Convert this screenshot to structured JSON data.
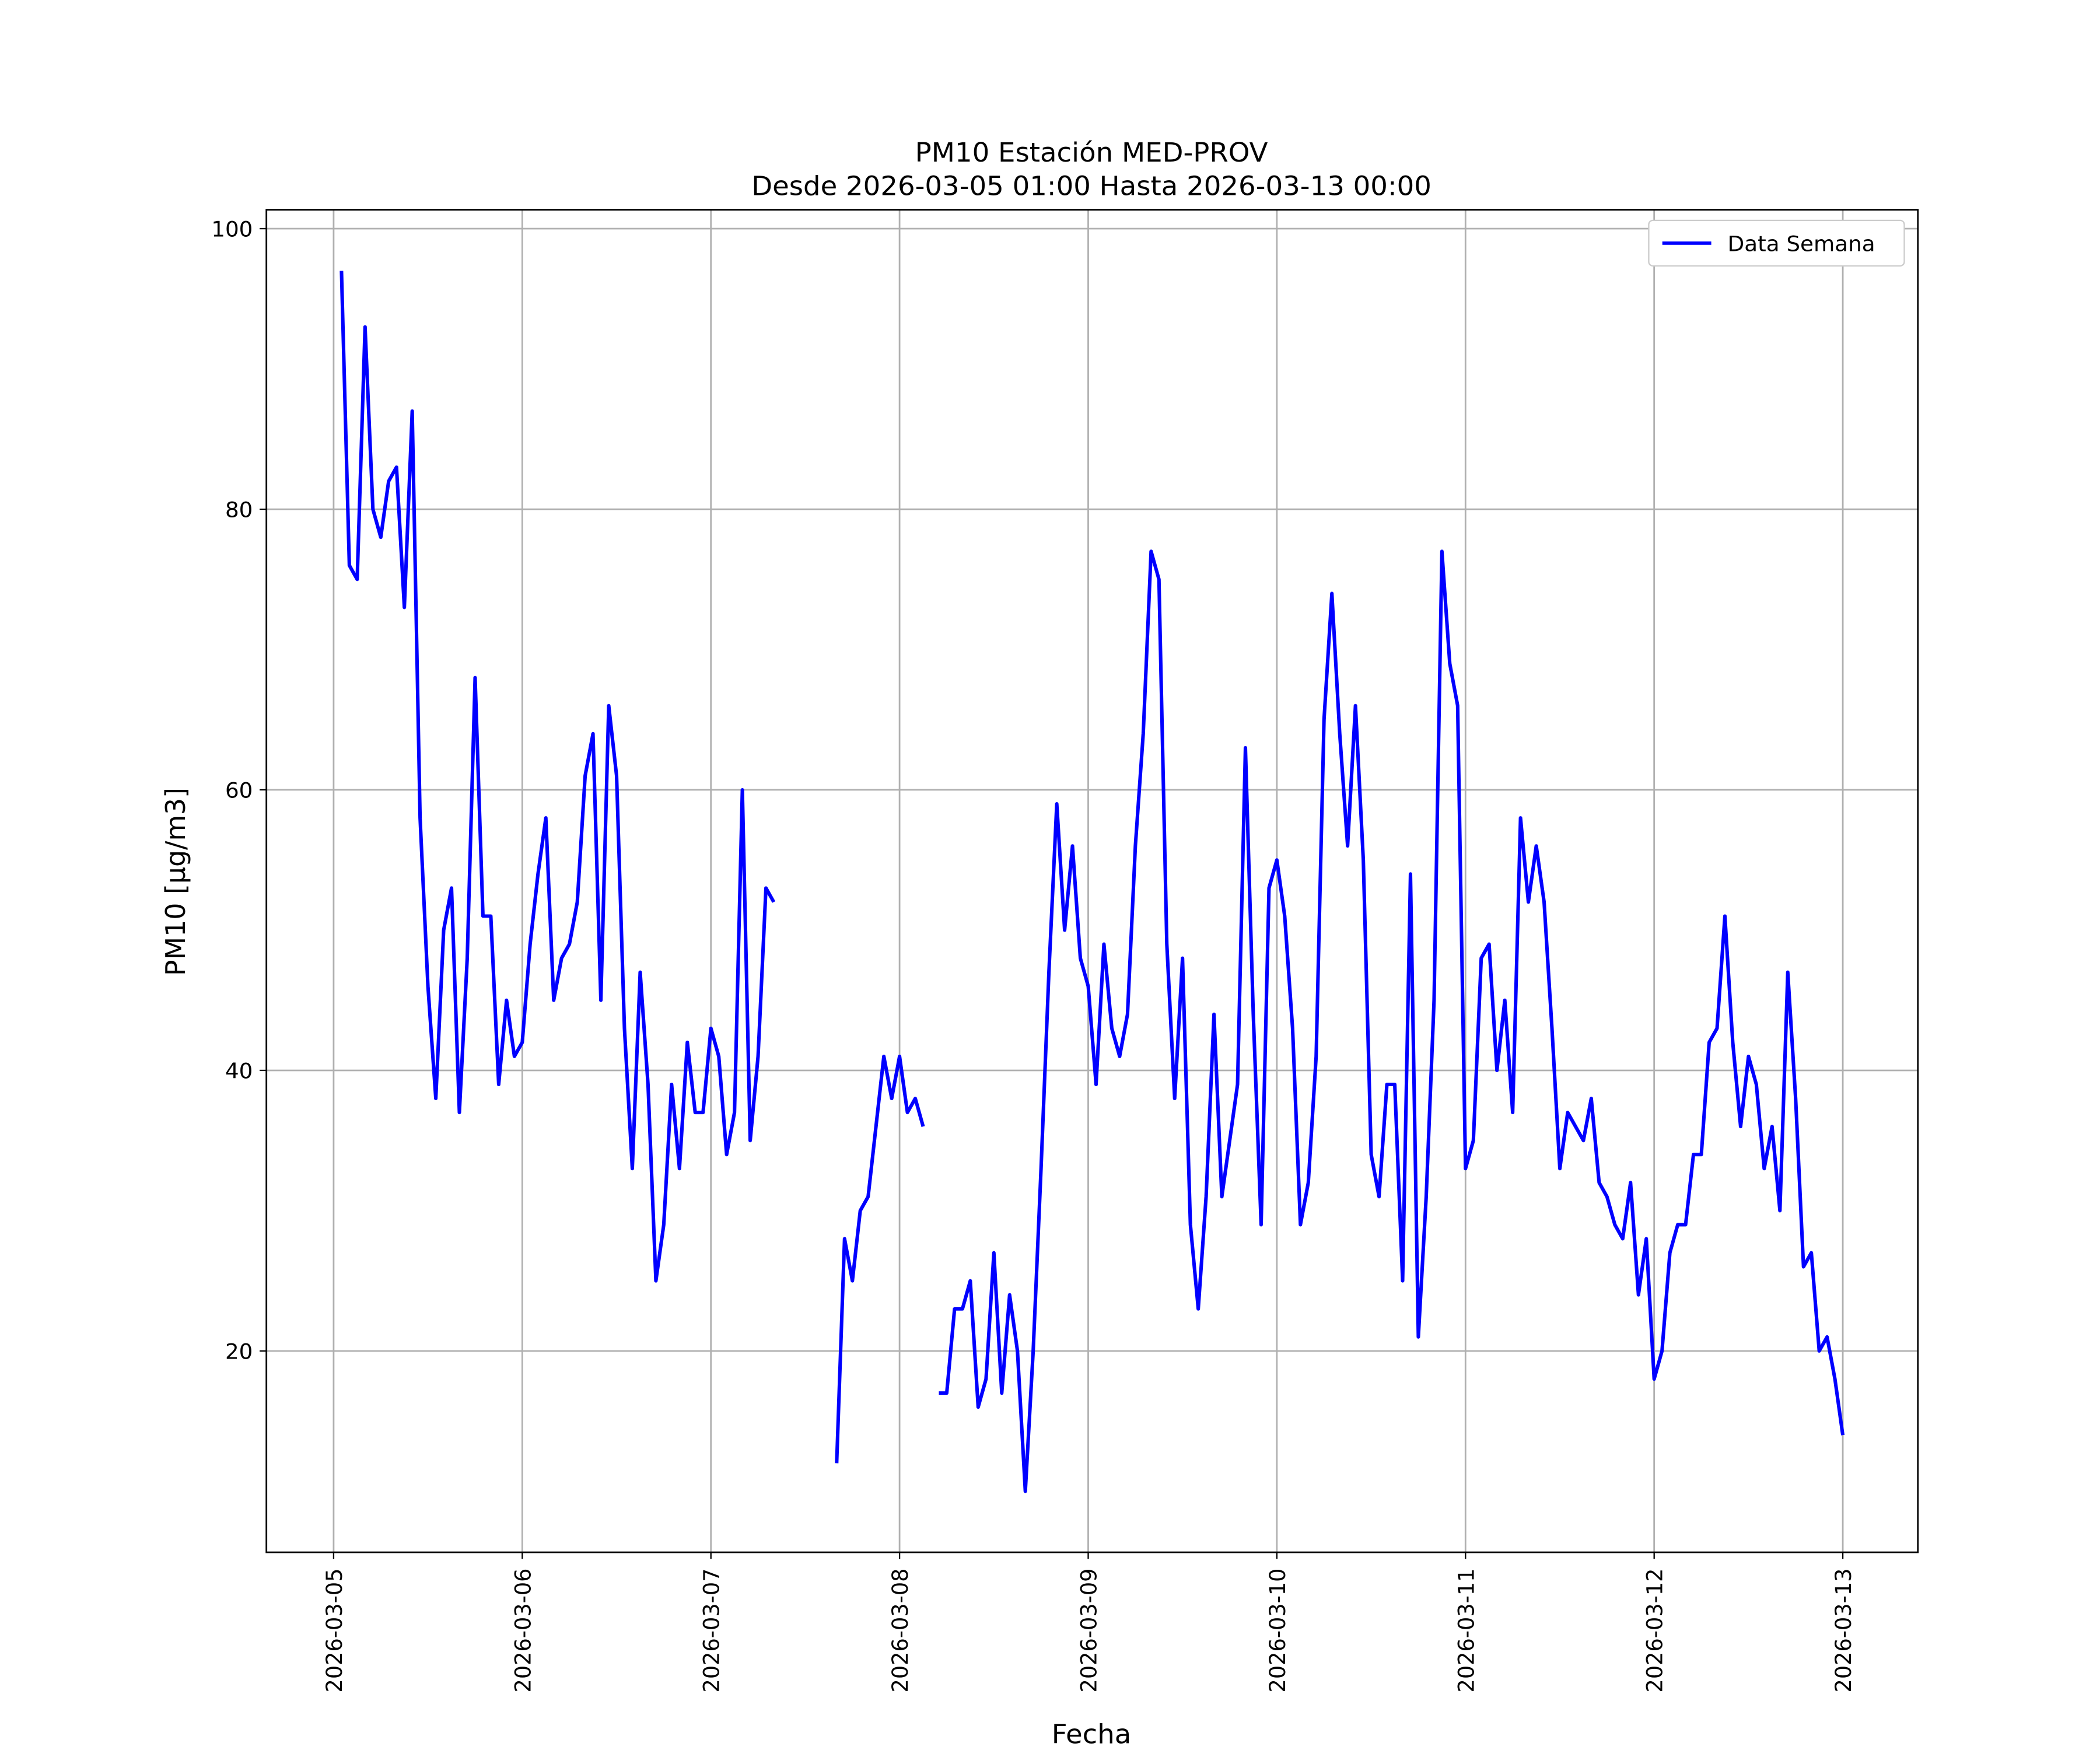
{
  "chart_data": {
    "type": "line",
    "title": "PM10 Estación MED-PROV",
    "subtitle": "Desde 2026-03-05 01:00 Hasta 2026-03-13 00:00",
    "x_label": "Fecha",
    "y_label": "PM10 [μg/m3]",
    "x": [
      "2026-03-05 01:00",
      "2026-03-05 02:00",
      "2026-03-05 03:00",
      "2026-03-05 04:00",
      "2026-03-05 05:00",
      "2026-03-05 06:00",
      "2026-03-05 07:00",
      "2026-03-05 08:00",
      "2026-03-05 09:00",
      "2026-03-05 10:00",
      "2026-03-05 11:00",
      "2026-03-05 12:00",
      "2026-03-05 13:00",
      "2026-03-05 14:00",
      "2026-03-05 15:00",
      "2026-03-05 16:00",
      "2026-03-05 17:00",
      "2026-03-05 18:00",
      "2026-03-05 19:00",
      "2026-03-05 20:00",
      "2026-03-05 21:00",
      "2026-03-05 22:00",
      "2026-03-05 23:00",
      "2026-03-06 00:00",
      "2026-03-06 01:00",
      "2026-03-06 02:00",
      "2026-03-06 03:00",
      "2026-03-06 04:00",
      "2026-03-06 05:00",
      "2026-03-06 06:00",
      "2026-03-06 07:00",
      "2026-03-06 08:00",
      "2026-03-06 09:00",
      "2026-03-06 10:00",
      "2026-03-06 11:00",
      "2026-03-06 12:00",
      "2026-03-06 13:00",
      "2026-03-06 14:00",
      "2026-03-06 15:00",
      "2026-03-06 16:00",
      "2026-03-06 17:00",
      "2026-03-06 18:00",
      "2026-03-06 19:00",
      "2026-03-06 20:00",
      "2026-03-06 21:00",
      "2026-03-06 22:00",
      "2026-03-06 23:00",
      "2026-03-07 00:00",
      "2026-03-07 01:00",
      "2026-03-07 02:00",
      "2026-03-07 03:00",
      "2026-03-07 04:00",
      "2026-03-07 05:00",
      "2026-03-07 06:00",
      "2026-03-07 07:00",
      "2026-03-07 08:00",
      "2026-03-07 09:00",
      "2026-03-07 10:00",
      "2026-03-07 11:00",
      "2026-03-07 12:00",
      "2026-03-07 13:00",
      "2026-03-07 14:00",
      "2026-03-07 15:00",
      "2026-03-07 16:00",
      "2026-03-07 17:00",
      "2026-03-07 18:00",
      "2026-03-07 19:00",
      "2026-03-07 20:00",
      "2026-03-07 21:00",
      "2026-03-07 22:00",
      "2026-03-07 23:00",
      "2026-03-08 00:00",
      "2026-03-08 01:00",
      "2026-03-08 02:00",
      "2026-03-08 03:00",
      "2026-03-08 04:00",
      "2026-03-08 05:00",
      "2026-03-08 06:00",
      "2026-03-08 07:00",
      "2026-03-08 08:00",
      "2026-03-08 09:00",
      "2026-03-08 10:00",
      "2026-03-08 11:00",
      "2026-03-08 12:00",
      "2026-03-08 13:00",
      "2026-03-08 14:00",
      "2026-03-08 15:00",
      "2026-03-08 16:00",
      "2026-03-08 17:00",
      "2026-03-08 18:00",
      "2026-03-08 19:00",
      "2026-03-08 20:00",
      "2026-03-08 21:00",
      "2026-03-08 22:00",
      "2026-03-08 23:00",
      "2026-03-09 00:00",
      "2026-03-09 01:00",
      "2026-03-09 02:00",
      "2026-03-09 03:00",
      "2026-03-09 04:00",
      "2026-03-09 05:00",
      "2026-03-09 06:00",
      "2026-03-09 07:00",
      "2026-03-09 08:00",
      "2026-03-09 09:00",
      "2026-03-09 10:00",
      "2026-03-09 11:00",
      "2026-03-09 12:00",
      "2026-03-09 13:00",
      "2026-03-09 14:00",
      "2026-03-09 15:00",
      "2026-03-09 16:00",
      "2026-03-09 17:00",
      "2026-03-09 18:00",
      "2026-03-09 19:00",
      "2026-03-09 20:00",
      "2026-03-09 21:00",
      "2026-03-09 22:00",
      "2026-03-09 23:00",
      "2026-03-10 00:00",
      "2026-03-10 01:00",
      "2026-03-10 02:00",
      "2026-03-10 03:00",
      "2026-03-10 04:00",
      "2026-03-10 05:00",
      "2026-03-10 06:00",
      "2026-03-10 07:00",
      "2026-03-10 08:00",
      "2026-03-10 09:00",
      "2026-03-10 10:00",
      "2026-03-10 11:00",
      "2026-03-10 12:00",
      "2026-03-10 13:00",
      "2026-03-10 14:00",
      "2026-03-10 15:00",
      "2026-03-10 16:00",
      "2026-03-10 17:00",
      "2026-03-10 18:00",
      "2026-03-10 19:00",
      "2026-03-10 20:00",
      "2026-03-10 21:00",
      "2026-03-10 22:00",
      "2026-03-10 23:00",
      "2026-03-11 00:00",
      "2026-03-11 01:00",
      "2026-03-11 02:00",
      "2026-03-11 03:00",
      "2026-03-11 04:00",
      "2026-03-11 05:00",
      "2026-03-11 06:00",
      "2026-03-11 07:00",
      "2026-03-11 08:00",
      "2026-03-11 09:00",
      "2026-03-11 10:00",
      "2026-03-11 11:00",
      "2026-03-11 12:00",
      "2026-03-11 13:00",
      "2026-03-11 14:00",
      "2026-03-11 15:00",
      "2026-03-11 16:00",
      "2026-03-11 17:00",
      "2026-03-11 18:00",
      "2026-03-11 19:00",
      "2026-03-11 20:00",
      "2026-03-11 21:00",
      "2026-03-11 22:00",
      "2026-03-11 23:00",
      "2026-03-12 00:00",
      "2026-03-12 01:00",
      "2026-03-12 02:00",
      "2026-03-12 03:00",
      "2026-03-12 04:00",
      "2026-03-12 05:00",
      "2026-03-12 06:00",
      "2026-03-12 07:00",
      "2026-03-12 08:00",
      "2026-03-12 09:00",
      "2026-03-12 10:00",
      "2026-03-12 11:00",
      "2026-03-12 12:00",
      "2026-03-12 13:00",
      "2026-03-12 14:00",
      "2026-03-12 15:00",
      "2026-03-12 16:00",
      "2026-03-12 17:00",
      "2026-03-12 18:00",
      "2026-03-12 19:00",
      "2026-03-12 20:00",
      "2026-03-12 21:00",
      "2026-03-12 22:00",
      "2026-03-12 23:00",
      "2026-03-13 00:00"
    ],
    "series": [
      {
        "name": "Data Semana",
        "color": "#0000ff",
        "values": [
          97,
          76,
          75,
          93,
          80,
          78,
          82,
          83,
          73,
          87,
          58,
          46,
          38,
          50,
          53,
          37,
          48,
          68,
          51,
          51,
          39,
          45,
          41,
          42,
          49,
          54,
          58,
          45,
          48,
          49,
          52,
          61,
          64,
          45,
          66,
          61,
          43,
          33,
          47,
          39,
          25,
          29,
          39,
          33,
          42,
          37,
          37,
          43,
          41,
          34,
          37,
          60,
          35,
          41,
          53,
          52,
          null,
          null,
          null,
          null,
          null,
          null,
          null,
          12,
          28,
          25,
          30,
          31,
          36,
          41,
          38,
          41,
          37,
          38,
          36,
          null,
          17,
          17,
          23,
          23,
          25,
          16,
          18,
          27,
          17,
          24,
          20,
          10,
          20,
          33,
          47,
          59,
          50,
          56,
          48,
          46,
          39,
          49,
          43,
          41,
          44,
          56,
          64,
          77,
          75,
          49,
          38,
          48,
          29,
          23,
          31,
          44,
          31,
          35,
          39,
          63,
          44,
          29,
          53,
          55,
          51,
          43,
          29,
          32,
          41,
          65,
          74,
          64,
          56,
          66,
          55,
          34,
          31,
          39,
          39,
          25,
          54,
          21,
          31,
          45,
          77,
          69,
          66,
          33,
          35,
          48,
          49,
          40,
          45,
          37,
          58,
          52,
          56,
          52,
          43,
          33,
          37,
          36,
          35,
          38,
          32,
          31,
          29,
          28,
          32,
          24,
          28,
          18,
          20,
          27,
          29,
          29,
          34,
          34,
          42,
          43,
          51,
          42,
          36,
          41,
          39,
          33,
          36,
          30,
          47,
          38,
          26,
          27,
          20,
          21,
          18,
          14
        ]
      }
    ],
    "xlim": [
      "2026-03-04 15:27",
      "2026-03-13 09:33"
    ],
    "xticks": [
      "2026-03-05",
      "2026-03-06",
      "2026-03-07",
      "2026-03-08",
      "2026-03-09",
      "2026-03-10",
      "2026-03-11",
      "2026-03-12",
      "2026-03-13"
    ],
    "ylim": [
      5.65,
      101.35
    ],
    "yticks": [
      20,
      40,
      60,
      80,
      100
    ],
    "grid": true,
    "legend": "upper right"
  }
}
